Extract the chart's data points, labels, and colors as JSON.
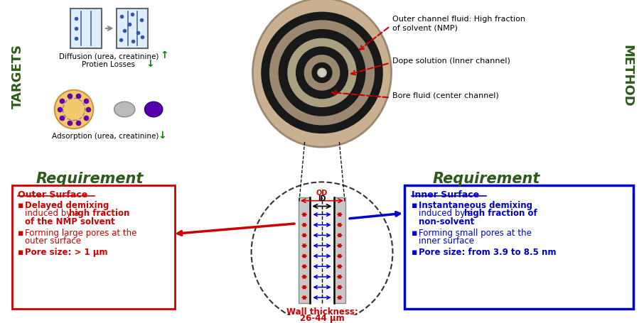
{
  "bg_color": "#ffffff",
  "targets_color": "#2d5a1b",
  "method_color": "#2d5a1b",
  "requirement_color": "#2d5a1b",
  "outer_box_color": "#cc0000",
  "inner_box_color": "#0000cc",
  "arrow_red_color": "#cc0000",
  "arrow_blue_color": "#0000cc",
  "wall_thickness_color": "#cc0000",
  "outer_label1": "Outer channel fluid: High fraction",
  "outer_label2": "of solvent (NMP)",
  "dope_label": "Dope solution (Inner channel)",
  "bore_label": "Bore fluid (center channel)",
  "left_req_title": "Requirement",
  "right_req_title": "Requirement",
  "outer_surface_title": "Outer Surface",
  "inner_surface_title": "Inner Surface",
  "wall_thickness_label1": "Wall thickness:",
  "wall_thickness_label2": "26-44 μm",
  "diffusion_text": "Diffusion (urea, creatinine)",
  "protein_text": "Protien Losses",
  "adsorption_text": "Adsorption (urea, creatinine)",
  "targets_text": "TARGETS",
  "method_text": "METHOD",
  "od_label": "OD",
  "id_label": "ID"
}
